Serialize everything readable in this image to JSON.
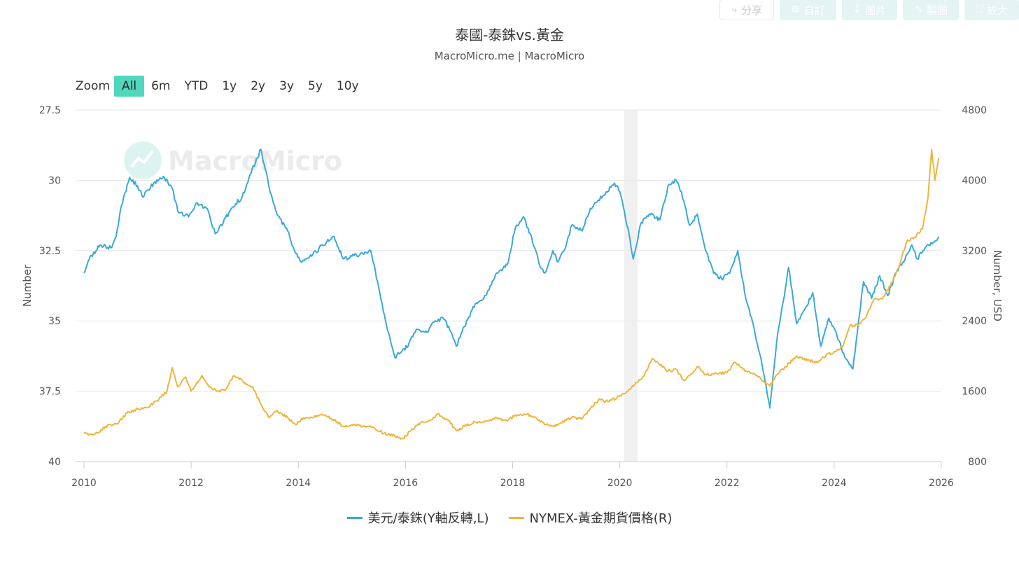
{
  "toolbar": {
    "share": {
      "icon": "share-icon",
      "label": "分享"
    },
    "customize": {
      "icon": "gear-icon",
      "label": "自訂"
    },
    "download": {
      "icon": "download-icon",
      "label": "圖片"
    },
    "draw": {
      "icon": "pencil-icon",
      "label": "製圖"
    },
    "fullscreen": {
      "icon": "expand-icon",
      "label": "放大"
    }
  },
  "range_selector": {
    "zoom_label": "Zoom",
    "buttons": [
      "All",
      "6m",
      "YTD",
      "1y",
      "2y",
      "3y",
      "5y",
      "10y"
    ],
    "active": "All"
  },
  "watermark": "MacroMicro",
  "chart_data": {
    "type": "line",
    "title": "泰國-泰銖vs.黃金",
    "subtitle": "MacroMicro.me | MacroMicro",
    "x_ticks": [
      "2010",
      "2012",
      "2014",
      "2016",
      "2018",
      "2020",
      "2022",
      "2024",
      "2026"
    ],
    "xlim": [
      2010,
      2026
    ],
    "left_axis": {
      "label": "Number",
      "ticks": [
        "27.5",
        "30",
        "32.5",
        "35",
        "37.5",
        "40"
      ],
      "range": [
        27.5,
        40
      ],
      "reversed": true
    },
    "right_axis": {
      "label": "Number, USD",
      "ticks": [
        "4800",
        "4000",
        "3200",
        "2400",
        "1600",
        "800"
      ],
      "range": [
        800,
        4800
      ]
    },
    "shaded_period": [
      2020.08,
      2020.33
    ],
    "grid": true,
    "legend_position": "bottom",
    "series": [
      {
        "name": "美元/泰銖(Y軸反轉,L)",
        "axis": "left",
        "color": "#3aa9d6",
        "points": [
          [
            2010.0,
            33.3
          ],
          [
            2010.1,
            32.8
          ],
          [
            2010.3,
            32.3
          ],
          [
            2010.5,
            32.4
          ],
          [
            2010.6,
            32.0
          ],
          [
            2010.7,
            30.9
          ],
          [
            2010.85,
            29.9
          ],
          [
            2011.0,
            30.2
          ],
          [
            2011.1,
            30.6
          ],
          [
            2011.3,
            30.1
          ],
          [
            2011.5,
            29.9
          ],
          [
            2011.65,
            30.3
          ],
          [
            2011.75,
            31.1
          ],
          [
            2011.95,
            31.3
          ],
          [
            2012.1,
            30.8
          ],
          [
            2012.3,
            31.0
          ],
          [
            2012.45,
            31.9
          ],
          [
            2012.6,
            31.5
          ],
          [
            2012.75,
            31.0
          ],
          [
            2012.95,
            30.6
          ],
          [
            2013.1,
            29.8
          ],
          [
            2013.3,
            28.9
          ],
          [
            2013.45,
            30.2
          ],
          [
            2013.6,
            31.2
          ],
          [
            2013.8,
            31.8
          ],
          [
            2013.95,
            32.6
          ],
          [
            2014.05,
            32.9
          ],
          [
            2014.25,
            32.7
          ],
          [
            2014.45,
            32.3
          ],
          [
            2014.65,
            32.0
          ],
          [
            2014.85,
            32.8
          ],
          [
            2015.0,
            32.7
          ],
          [
            2015.2,
            32.6
          ],
          [
            2015.35,
            32.5
          ],
          [
            2015.5,
            33.8
          ],
          [
            2015.65,
            35.2
          ],
          [
            2015.8,
            36.3
          ],
          [
            2015.95,
            36.0
          ],
          [
            2016.05,
            35.9
          ],
          [
            2016.2,
            35.3
          ],
          [
            2016.4,
            35.4
          ],
          [
            2016.55,
            35.0
          ],
          [
            2016.7,
            34.9
          ],
          [
            2016.85,
            35.4
          ],
          [
            2016.95,
            35.9
          ],
          [
            2017.1,
            35.2
          ],
          [
            2017.3,
            34.4
          ],
          [
            2017.5,
            34.1
          ],
          [
            2017.7,
            33.3
          ],
          [
            2017.9,
            33.0
          ],
          [
            2018.05,
            31.7
          ],
          [
            2018.2,
            31.3
          ],
          [
            2018.35,
            32.0
          ],
          [
            2018.5,
            33.0
          ],
          [
            2018.6,
            33.3
          ],
          [
            2018.75,
            32.5
          ],
          [
            2018.85,
            32.9
          ],
          [
            2019.0,
            32.3
          ],
          [
            2019.1,
            31.6
          ],
          [
            2019.3,
            31.8
          ],
          [
            2019.45,
            31.0
          ],
          [
            2019.6,
            30.7
          ],
          [
            2019.75,
            30.4
          ],
          [
            2019.9,
            30.1
          ],
          [
            2020.0,
            30.4
          ],
          [
            2020.15,
            31.7
          ],
          [
            2020.25,
            32.8
          ],
          [
            2020.4,
            31.5
          ],
          [
            2020.55,
            31.2
          ],
          [
            2020.75,
            31.4
          ],
          [
            2020.9,
            30.2
          ],
          [
            2021.05,
            30.0
          ],
          [
            2021.15,
            30.4
          ],
          [
            2021.3,
            31.6
          ],
          [
            2021.45,
            31.2
          ],
          [
            2021.6,
            32.5
          ],
          [
            2021.75,
            33.3
          ],
          [
            2021.9,
            33.5
          ],
          [
            2022.05,
            33.3
          ],
          [
            2022.2,
            32.5
          ],
          [
            2022.35,
            34.2
          ],
          [
            2022.5,
            35.2
          ],
          [
            2022.65,
            36.5
          ],
          [
            2022.8,
            38.1
          ],
          [
            2022.95,
            35.4
          ],
          [
            2023.05,
            34.3
          ],
          [
            2023.15,
            33.1
          ],
          [
            2023.3,
            35.1
          ],
          [
            2023.45,
            34.6
          ],
          [
            2023.6,
            34.0
          ],
          [
            2023.75,
            35.9
          ],
          [
            2023.9,
            34.9
          ],
          [
            2024.05,
            35.5
          ],
          [
            2024.2,
            36.3
          ],
          [
            2024.35,
            36.7
          ],
          [
            2024.45,
            35.1
          ],
          [
            2024.55,
            33.6
          ],
          [
            2024.7,
            34.2
          ],
          [
            2024.85,
            33.4
          ],
          [
            2025.0,
            34.1
          ],
          [
            2025.15,
            33.3
          ],
          [
            2025.3,
            32.9
          ],
          [
            2025.45,
            32.3
          ],
          [
            2025.55,
            32.8
          ],
          [
            2025.7,
            32.4
          ],
          [
            2025.85,
            32.2
          ],
          [
            2025.95,
            32.0
          ]
        ]
      },
      {
        "name": "NYMEX-黃金期貨價格(R)",
        "axis": "right",
        "color": "#f0b43c",
        "points": [
          [
            2010.0,
            1120
          ],
          [
            2010.2,
            1110
          ],
          [
            2010.4,
            1200
          ],
          [
            2010.6,
            1230
          ],
          [
            2010.8,
            1350
          ],
          [
            2011.0,
            1400
          ],
          [
            2011.2,
            1420
          ],
          [
            2011.4,
            1510
          ],
          [
            2011.55,
            1600
          ],
          [
            2011.65,
            1870
          ],
          [
            2011.75,
            1650
          ],
          [
            2011.9,
            1760
          ],
          [
            2012.0,
            1600
          ],
          [
            2012.2,
            1780
          ],
          [
            2012.35,
            1650
          ],
          [
            2012.5,
            1600
          ],
          [
            2012.65,
            1620
          ],
          [
            2012.8,
            1780
          ],
          [
            2013.0,
            1700
          ],
          [
            2013.15,
            1650
          ],
          [
            2013.3,
            1450
          ],
          [
            2013.45,
            1300
          ],
          [
            2013.6,
            1380
          ],
          [
            2013.8,
            1300
          ],
          [
            2013.95,
            1220
          ],
          [
            2014.1,
            1300
          ],
          [
            2014.25,
            1300
          ],
          [
            2014.45,
            1330
          ],
          [
            2014.65,
            1280
          ],
          [
            2014.85,
            1200
          ],
          [
            2015.0,
            1220
          ],
          [
            2015.2,
            1200
          ],
          [
            2015.4,
            1190
          ],
          [
            2015.6,
            1120
          ],
          [
            2015.8,
            1090
          ],
          [
            2015.95,
            1060
          ],
          [
            2016.1,
            1150
          ],
          [
            2016.3,
            1250
          ],
          [
            2016.5,
            1280
          ],
          [
            2016.6,
            1340
          ],
          [
            2016.8,
            1270
          ],
          [
            2016.95,
            1150
          ],
          [
            2017.1,
            1200
          ],
          [
            2017.3,
            1250
          ],
          [
            2017.5,
            1260
          ],
          [
            2017.7,
            1300
          ],
          [
            2017.9,
            1260
          ],
          [
            2018.05,
            1330
          ],
          [
            2018.25,
            1340
          ],
          [
            2018.45,
            1290
          ],
          [
            2018.6,
            1220
          ],
          [
            2018.75,
            1200
          ],
          [
            2018.9,
            1240
          ],
          [
            2019.1,
            1300
          ],
          [
            2019.3,
            1290
          ],
          [
            2019.45,
            1400
          ],
          [
            2019.6,
            1500
          ],
          [
            2019.8,
            1480
          ],
          [
            2020.0,
            1550
          ],
          [
            2020.15,
            1600
          ],
          [
            2020.3,
            1700
          ],
          [
            2020.45,
            1770
          ],
          [
            2020.6,
            1970
          ],
          [
            2020.75,
            1900
          ],
          [
            2020.9,
            1830
          ],
          [
            2021.05,
            1850
          ],
          [
            2021.2,
            1720
          ],
          [
            2021.35,
            1800
          ],
          [
            2021.45,
            1880
          ],
          [
            2021.6,
            1790
          ],
          [
            2021.8,
            1800
          ],
          [
            2022.0,
            1810
          ],
          [
            2022.15,
            1930
          ],
          [
            2022.3,
            1850
          ],
          [
            2022.5,
            1800
          ],
          [
            2022.7,
            1700
          ],
          [
            2022.8,
            1660
          ],
          [
            2022.95,
            1800
          ],
          [
            2023.1,
            1880
          ],
          [
            2023.3,
            2000
          ],
          [
            2023.5,
            1950
          ],
          [
            2023.7,
            1930
          ],
          [
            2023.85,
            2010
          ],
          [
            2024.0,
            2050
          ],
          [
            2024.15,
            2100
          ],
          [
            2024.3,
            2350
          ],
          [
            2024.45,
            2350
          ],
          [
            2024.6,
            2450
          ],
          [
            2024.75,
            2650
          ],
          [
            2024.9,
            2650
          ],
          [
            2025.05,
            2800
          ],
          [
            2025.2,
            3000
          ],
          [
            2025.35,
            3300
          ],
          [
            2025.5,
            3350
          ],
          [
            2025.65,
            3450
          ],
          [
            2025.75,
            3800
          ],
          [
            2025.82,
            4350
          ],
          [
            2025.88,
            4000
          ],
          [
            2025.95,
            4250
          ]
        ]
      }
    ]
  }
}
